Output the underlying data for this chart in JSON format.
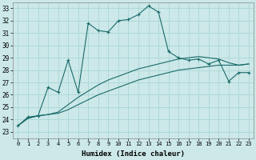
{
  "title": "",
  "xlabel": "Humidex (Indice chaleur)",
  "background_color": "#cce8e8",
  "grid_color": "#b0d8d8",
  "line_color": "#1a6b6b",
  "x_ticks": [
    0,
    1,
    2,
    3,
    4,
    5,
    6,
    7,
    8,
    9,
    10,
    11,
    12,
    13,
    14,
    15,
    16,
    17,
    18,
    19,
    20,
    21,
    22,
    23
  ],
  "y_ticks": [
    23,
    24,
    25,
    26,
    27,
    28,
    29,
    30,
    31,
    32,
    33
  ],
  "ylim": [
    22.5,
    33.5
  ],
  "xlim": [
    -0.5,
    23.5
  ],
  "series": {
    "main": [
      23.5,
      24.2,
      24.3,
      26.6,
      26.2,
      28.8,
      26.2,
      31.8,
      31.2,
      31.1,
      32.0,
      32.1,
      32.5,
      33.2,
      32.7,
      29.5,
      29.0,
      28.8,
      28.9,
      28.5,
      28.8,
      27.1,
      27.8,
      27.8
    ],
    "upper": [
      23.5,
      24.1,
      24.3,
      24.4,
      24.6,
      25.2,
      25.8,
      26.3,
      26.8,
      27.2,
      27.5,
      27.8,
      28.1,
      28.3,
      28.5,
      28.7,
      28.9,
      29.0,
      29.1,
      29.0,
      28.9,
      28.6,
      28.4,
      28.5
    ],
    "lower": [
      23.5,
      24.1,
      24.3,
      24.4,
      24.5,
      24.8,
      25.2,
      25.6,
      26.0,
      26.3,
      26.6,
      26.9,
      27.2,
      27.4,
      27.6,
      27.8,
      28.0,
      28.1,
      28.2,
      28.3,
      28.4,
      28.4,
      28.4,
      28.5
    ]
  }
}
